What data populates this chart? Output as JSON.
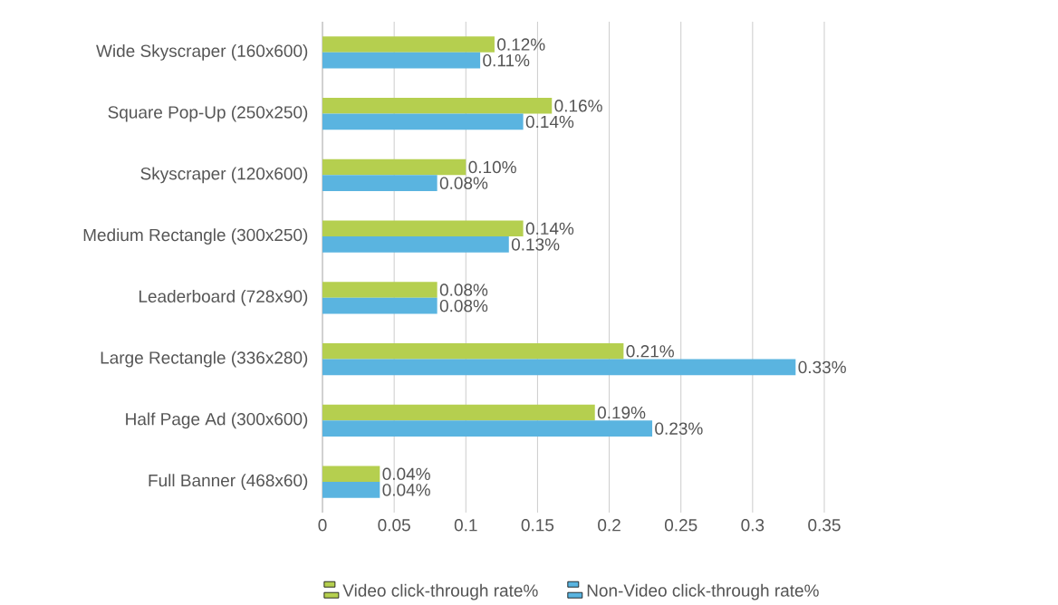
{
  "chart_data": {
    "type": "bar",
    "orientation": "horizontal",
    "categories": [
      "Wide Skyscraper (160x600)",
      "Square Pop-Up (250x250)",
      "Skyscraper (120x600)",
      "Medium Rectangle (300x250)",
      "Leaderboard (728x90)",
      "Large Rectangle (336x280)",
      "Half Page Ad (300x600)",
      "Full Banner (468x60)"
    ],
    "series": [
      {
        "name": "Video click-through rate%",
        "color": "#b5cf4f",
        "values": [
          0.12,
          0.16,
          0.1,
          0.14,
          0.08,
          0.21,
          0.19,
          0.04
        ],
        "value_labels": [
          "0.12%",
          "0.16%",
          "0.10%",
          "0.14%",
          "0.08%",
          "0.21%",
          "0.19%",
          "0.04%"
        ]
      },
      {
        "name": "Non-Video click-through rate%",
        "color": "#5ab4e0",
        "values": [
          0.11,
          0.14,
          0.08,
          0.13,
          0.08,
          0.33,
          0.23,
          0.04
        ],
        "value_labels": [
          "0.11%",
          "0.14%",
          "0.08%",
          "0.13%",
          "0.08%",
          "0.33%",
          "0.23%",
          "0.04%"
        ]
      }
    ],
    "xlim": [
      0,
      0.35
    ],
    "xticks": [
      0,
      0.05,
      0.1,
      0.15,
      0.2,
      0.25,
      0.3,
      0.35
    ],
    "grid": "x",
    "legend": "bottom"
  }
}
